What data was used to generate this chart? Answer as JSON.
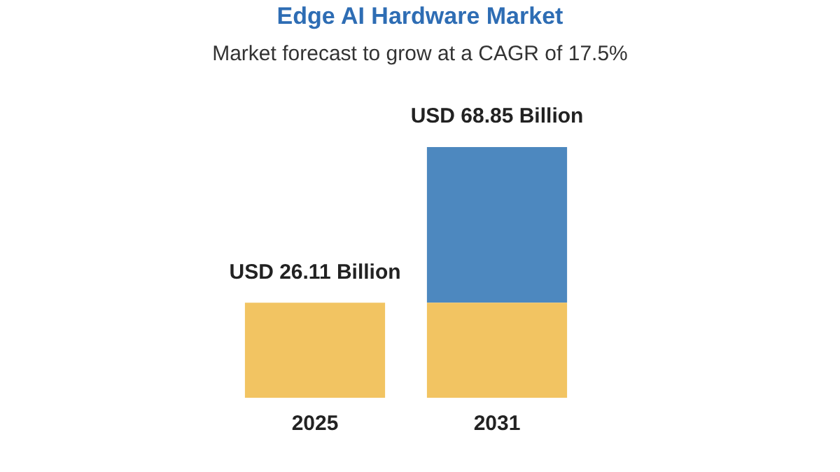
{
  "chart_data": {
    "type": "bar",
    "title": "Edge AI Hardware Market",
    "subtitle": "Market forecast to grow at a CAGR of 17.5%",
    "categories": [
      "2025",
      "2031"
    ],
    "series": [
      {
        "color": "#f2c462",
        "values": [
          26.11,
          26.11
        ],
        "value_labels": [
          "USD 26.11 Billion",
          null
        ]
      },
      {
        "color": "#4d88bf",
        "values": [
          null,
          42.74
        ]
      }
    ],
    "stacked": true,
    "totals": [
      null,
      "USD 68.85 Billion"
    ],
    "grid": false,
    "legend": false
  }
}
